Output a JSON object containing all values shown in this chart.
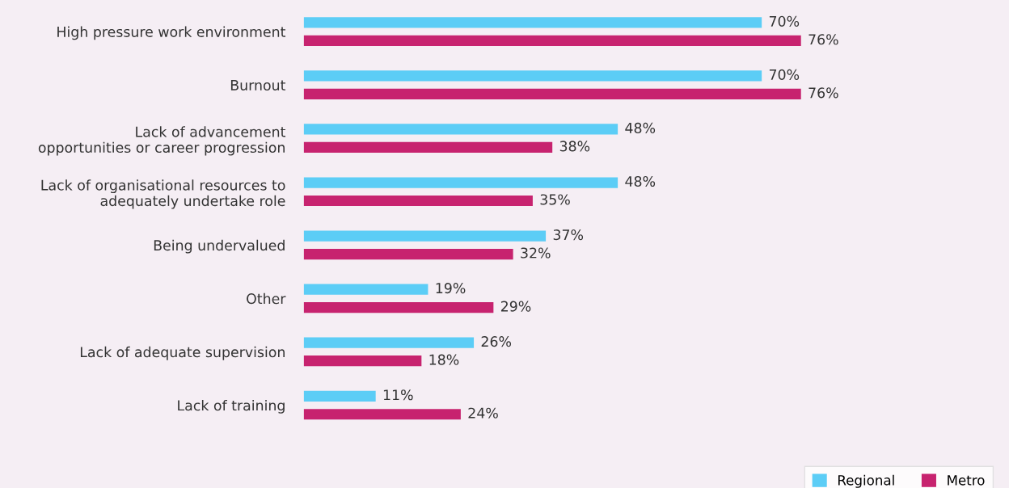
{
  "chart_data": {
    "type": "bar",
    "orientation": "horizontal",
    "categories": [
      "High pressure work environment",
      "Burnout",
      "Lack of advancement\nopportunities or career progression",
      "Lack of organisational resources to\nadequately undertake role",
      "Being undervalued",
      "Other",
      "Lack of adequate supervision",
      "Lack of training"
    ],
    "series": [
      {
        "name": "Regional",
        "color": "#5ccdf6",
        "values": [
          70,
          70,
          48,
          48,
          37,
          19,
          26,
          11
        ],
        "value_labels": [
          "70%",
          "70%",
          "48%",
          "48%",
          "37%",
          "19%",
          "26%",
          "11%"
        ]
      },
      {
        "name": "Metro",
        "color": "#c7236f",
        "values": [
          76,
          76,
          38,
          35,
          32,
          29,
          18,
          24
        ],
        "value_labels": [
          "76%",
          "76%",
          "38%",
          "35%",
          "32%",
          "29%",
          "18%",
          "24%"
        ]
      }
    ],
    "legend": "bottom right",
    "grid": false
  }
}
